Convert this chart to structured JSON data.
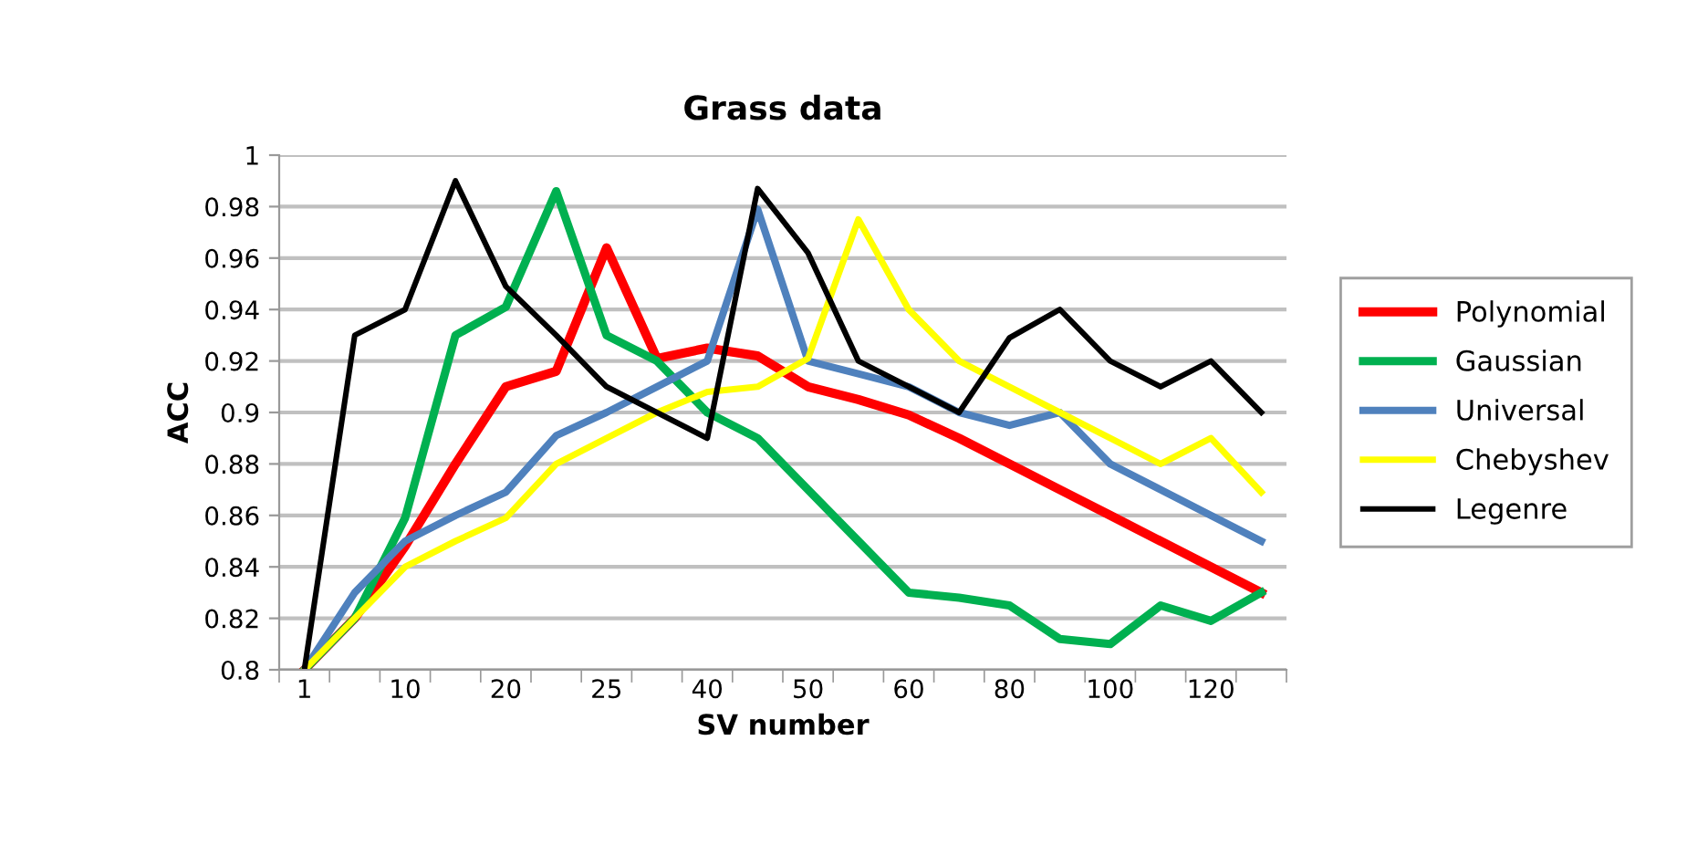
{
  "chart_data": {
    "type": "line",
    "title": "Grass data",
    "xlabel": "SV number",
    "ylabel": "ACC",
    "categories": [
      "1",
      null,
      "10",
      null,
      "20",
      null,
      "25",
      null,
      "40",
      null,
      "50",
      null,
      "60",
      null,
      "80",
      null,
      "100",
      null,
      "120",
      null
    ],
    "series": [
      {
        "name": "Polynomial",
        "color": "#ff0000",
        "values": [
          0.8,
          0.82,
          0.848,
          0.88,
          0.91,
          0.916,
          0.964,
          0.921,
          0.925,
          0.922,
          0.91,
          0.905,
          0.899,
          0.89,
          0.88,
          0.87,
          0.86,
          0.85,
          0.84,
          0.83
        ]
      },
      {
        "name": "Gaussian",
        "color": "#00b050",
        "values": [
          0.8,
          0.82,
          0.859,
          0.93,
          0.941,
          0.986,
          0.93,
          0.92,
          0.9,
          0.89,
          0.87,
          0.85,
          0.83,
          0.828,
          0.825,
          0.812,
          0.81,
          0.825,
          0.819,
          0.83
        ]
      },
      {
        "name": "Universal",
        "color": "#4f81bd",
        "values": [
          0.8,
          0.83,
          0.85,
          0.86,
          0.869,
          0.891,
          0.9,
          0.91,
          0.92,
          0.979,
          0.92,
          0.915,
          0.91,
          0.9,
          0.895,
          0.9,
          0.88,
          0.87,
          0.86,
          0.85
        ]
      },
      {
        "name": "Chebyshev",
        "color": "#ffff00",
        "values": [
          0.8,
          0.82,
          0.84,
          0.85,
          0.859,
          0.88,
          0.89,
          0.9,
          0.908,
          0.91,
          0.921,
          0.975,
          0.94,
          0.92,
          0.91,
          0.9,
          0.89,
          0.88,
          0.89,
          0.869
        ]
      },
      {
        "name": "Legenre",
        "color": "#000000",
        "values": [
          0.8,
          0.93,
          0.94,
          0.99,
          0.949,
          0.93,
          0.91,
          0.9,
          0.89,
          0.987,
          0.962,
          0.92,
          0.91,
          0.9,
          0.929,
          0.94,
          0.92,
          0.91,
          0.92,
          0.9
        ]
      }
    ],
    "ylim": [
      0.8,
      1
    ],
    "yticks": [
      0.8,
      0.82,
      0.84,
      0.86,
      0.88,
      0.9,
      0.92,
      0.94,
      0.96,
      0.98,
      1
    ],
    "grid": "y",
    "legend": "right",
    "marker": "none",
    "line_style": "solid"
  }
}
